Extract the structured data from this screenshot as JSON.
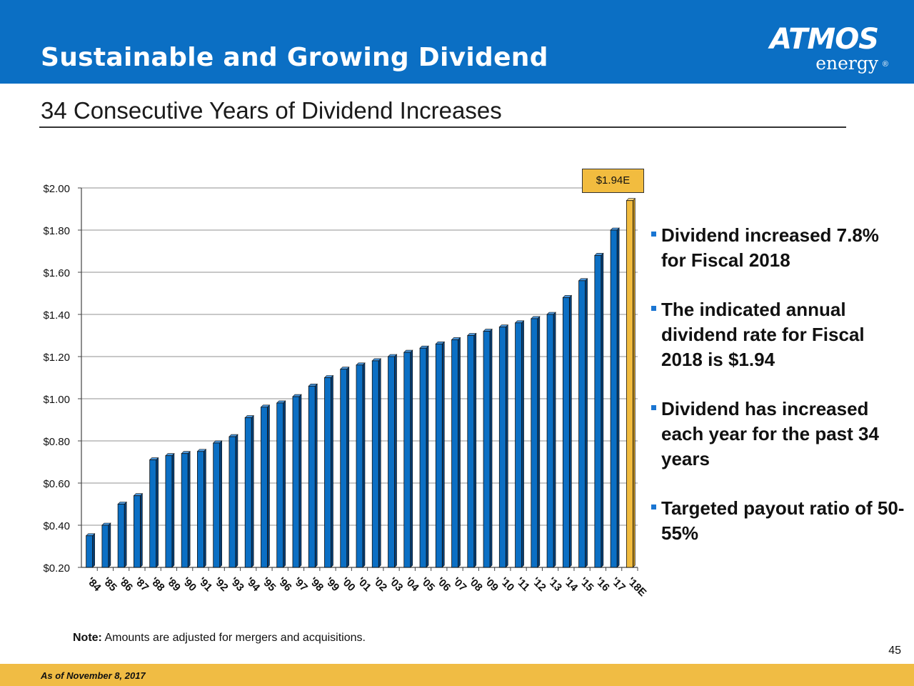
{
  "header": {
    "title": "Sustainable and Growing Dividend",
    "logo_word": "ATMOS",
    "logo_sub": "energy",
    "logo_reg": "®"
  },
  "subtitle": "34 Consecutive Years of Dividend Increases",
  "callout": "$1.94E",
  "bullets": [
    "Dividend increased 7.8% for Fiscal 2018",
    "The indicated annual dividend rate for Fiscal 2018 is $1.94",
    "Dividend has increased each year for the past 34 years",
    "Targeted payout ratio of 50-55%"
  ],
  "note": {
    "label": "Note:",
    "text": " Amounts are adjusted for mergers and acquisitions."
  },
  "page_number": "45",
  "footer": "As of November 8, 2017",
  "colors": {
    "header": "#0b6fc4",
    "bar": "#0b6fc4",
    "highlight": "#f2bc3f",
    "footer": "#f0bc44"
  },
  "chart_data": {
    "type": "bar",
    "title": "",
    "xlabel": "",
    "ylabel": "",
    "ylim": [
      0.2,
      2.0
    ],
    "yticks": [
      0.2,
      0.4,
      0.6,
      0.8,
      1.0,
      1.2,
      1.4,
      1.6,
      1.8,
      2.0
    ],
    "ytick_labels": [
      "$0.20",
      "$0.40",
      "$0.60",
      "$0.80",
      "$1.00",
      "$1.20",
      "$1.40",
      "$1.60",
      "$1.80",
      "$2.00"
    ],
    "grid": true,
    "categories": [
      "'84",
      "'85",
      "'86",
      "'87",
      "'88",
      "'89",
      "'90",
      "'91",
      "'92",
      "'93",
      "'94",
      "'95",
      "'96",
      "'97",
      "'98",
      "'99",
      "'00",
      "'01",
      "'02",
      "'03",
      "'04",
      "'05",
      "'06",
      "'07",
      "'08",
      "'09",
      "'10",
      "'11",
      "'12",
      "'13",
      "'14",
      "'15",
      "'16",
      "'17",
      "'18E"
    ],
    "values": [
      0.35,
      0.4,
      0.5,
      0.54,
      0.71,
      0.73,
      0.74,
      0.75,
      0.79,
      0.82,
      0.91,
      0.96,
      0.98,
      1.01,
      1.06,
      1.1,
      1.14,
      1.16,
      1.18,
      1.2,
      1.22,
      1.24,
      1.26,
      1.28,
      1.3,
      1.32,
      1.34,
      1.36,
      1.38,
      1.4,
      1.48,
      1.56,
      1.68,
      1.8,
      1.94
    ],
    "highlight_category": "'18E"
  }
}
